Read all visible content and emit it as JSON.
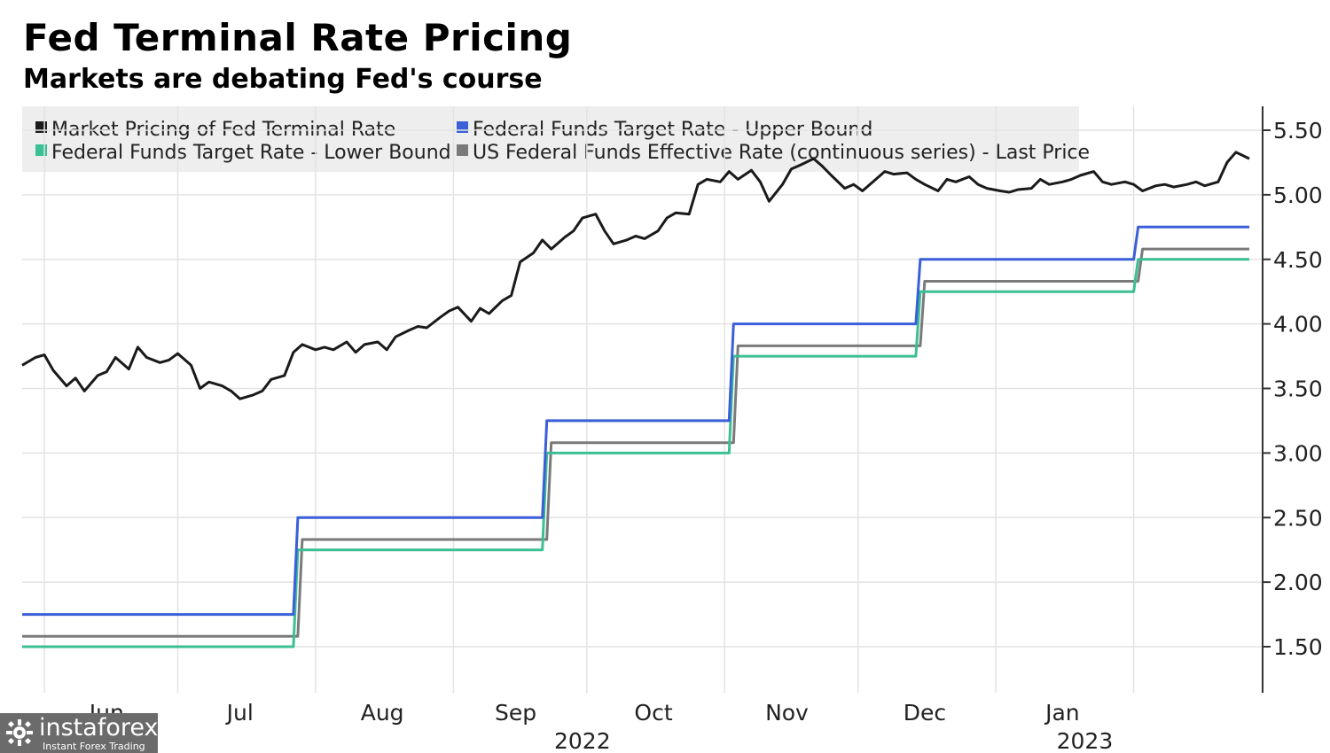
{
  "header": {
    "title": "Fed Terminal Rate Pricing",
    "subtitle": "Markets are debating Fed's course"
  },
  "watermark": {
    "name": "instaforex",
    "tagline": "Instant Forex Trading",
    "icon": "instaforex-logo-icon"
  },
  "chart_data": {
    "type": "line",
    "title": "Fed Terminal Rate Pricing",
    "subtitle": "Markets are debating Fed's course",
    "ylim": [
      1.5,
      5.5
    ],
    "yticks": [
      "1.50",
      "2.00",
      "2.50",
      "3.00",
      "3.50",
      "4.00",
      "4.50",
      "5.00",
      "5.50"
    ],
    "y_axis_side": "right",
    "grid": true,
    "legend_placement": "top-left",
    "x_month_labels": [
      "Jun",
      "Jul",
      "Aug",
      "Sep",
      "Oct",
      "Nov",
      "Dec",
      "Jan"
    ],
    "x_year_labels": [
      "2022",
      "2023"
    ],
    "series": [
      {
        "name": "Market Pricing of Fed Terminal Rate",
        "color": "#1a1a1a",
        "points": [
          [
            "2022-05-27",
            3.68
          ],
          [
            "2022-05-30",
            3.74
          ],
          [
            "2022-06-01",
            3.76
          ],
          [
            "2022-06-03",
            3.64
          ],
          [
            "2022-06-06",
            3.52
          ],
          [
            "2022-06-08",
            3.58
          ],
          [
            "2022-06-10",
            3.48
          ],
          [
            "2022-06-13",
            3.6
          ],
          [
            "2022-06-15",
            3.63
          ],
          [
            "2022-06-17",
            3.74
          ],
          [
            "2022-06-20",
            3.65
          ],
          [
            "2022-06-22",
            3.82
          ],
          [
            "2022-06-24",
            3.74
          ],
          [
            "2022-06-27",
            3.7
          ],
          [
            "2022-06-29",
            3.72
          ],
          [
            "2022-07-01",
            3.77
          ],
          [
            "2022-07-04",
            3.68
          ],
          [
            "2022-07-06",
            3.5
          ],
          [
            "2022-07-08",
            3.55
          ],
          [
            "2022-07-11",
            3.52
          ],
          [
            "2022-07-13",
            3.48
          ],
          [
            "2022-07-15",
            3.42
          ],
          [
            "2022-07-18",
            3.45
          ],
          [
            "2022-07-20",
            3.48
          ],
          [
            "2022-07-22",
            3.57
          ],
          [
            "2022-07-25",
            3.6
          ],
          [
            "2022-07-27",
            3.78
          ],
          [
            "2022-07-29",
            3.84
          ],
          [
            "2022-08-01",
            3.8
          ],
          [
            "2022-08-03",
            3.82
          ],
          [
            "2022-08-05",
            3.8
          ],
          [
            "2022-08-08",
            3.86
          ],
          [
            "2022-08-10",
            3.78
          ],
          [
            "2022-08-12",
            3.84
          ],
          [
            "2022-08-15",
            3.86
          ],
          [
            "2022-08-17",
            3.8
          ],
          [
            "2022-08-19",
            3.9
          ],
          [
            "2022-08-22",
            3.95
          ],
          [
            "2022-08-24",
            3.98
          ],
          [
            "2022-08-26",
            3.97
          ],
          [
            "2022-08-29",
            4.05
          ],
          [
            "2022-08-31",
            4.1
          ],
          [
            "2022-09-02",
            4.13
          ],
          [
            "2022-09-05",
            4.02
          ],
          [
            "2022-09-07",
            4.12
          ],
          [
            "2022-09-09",
            4.08
          ],
          [
            "2022-09-12",
            4.18
          ],
          [
            "2022-09-14",
            4.22
          ],
          [
            "2022-09-16",
            4.48
          ],
          [
            "2022-09-19",
            4.55
          ],
          [
            "2022-09-21",
            4.65
          ],
          [
            "2022-09-23",
            4.58
          ],
          [
            "2022-09-26",
            4.67
          ],
          [
            "2022-09-28",
            4.72
          ],
          [
            "2022-09-30",
            4.82
          ],
          [
            "2022-10-03",
            4.85
          ],
          [
            "2022-10-05",
            4.72
          ],
          [
            "2022-10-07",
            4.62
          ],
          [
            "2022-10-10",
            4.65
          ],
          [
            "2022-10-12",
            4.68
          ],
          [
            "2022-10-14",
            4.66
          ],
          [
            "2022-10-17",
            4.72
          ],
          [
            "2022-10-19",
            4.82
          ],
          [
            "2022-10-21",
            4.86
          ],
          [
            "2022-10-24",
            4.85
          ],
          [
            "2022-10-26",
            5.08
          ],
          [
            "2022-10-28",
            5.12
          ],
          [
            "2022-10-31",
            5.1
          ],
          [
            "2022-11-02",
            5.18
          ],
          [
            "2022-11-04",
            5.12
          ],
          [
            "2022-11-07",
            5.19
          ],
          [
            "2022-11-09",
            5.1
          ],
          [
            "2022-11-11",
            4.95
          ],
          [
            "2022-11-14",
            5.08
          ],
          [
            "2022-11-16",
            5.2
          ],
          [
            "2022-11-18",
            5.23
          ],
          [
            "2022-11-21",
            5.28
          ],
          [
            "2022-11-23",
            5.22
          ],
          [
            "2022-11-25",
            5.15
          ],
          [
            "2022-11-28",
            5.05
          ],
          [
            "2022-11-30",
            5.08
          ],
          [
            "2022-12-02",
            5.03
          ],
          [
            "2022-12-05",
            5.12
          ],
          [
            "2022-12-07",
            5.18
          ],
          [
            "2022-12-09",
            5.16
          ],
          [
            "2022-12-12",
            5.17
          ],
          [
            "2022-12-14",
            5.12
          ],
          [
            "2022-12-16",
            5.08
          ],
          [
            "2022-12-19",
            5.03
          ],
          [
            "2022-12-21",
            5.12
          ],
          [
            "2022-12-23",
            5.1
          ],
          [
            "2022-12-26",
            5.14
          ],
          [
            "2022-12-28",
            5.08
          ],
          [
            "2022-12-30",
            5.05
          ],
          [
            "2023-01-02",
            5.03
          ],
          [
            "2023-01-04",
            5.02
          ],
          [
            "2023-01-06",
            5.04
          ],
          [
            "2023-01-09",
            5.05
          ],
          [
            "2023-01-11",
            5.12
          ],
          [
            "2023-01-13",
            5.08
          ],
          [
            "2023-01-16",
            5.1
          ],
          [
            "2023-01-18",
            5.12
          ],
          [
            "2023-01-20",
            5.15
          ],
          [
            "2023-01-23",
            5.18
          ],
          [
            "2023-01-25",
            5.1
          ],
          [
            "2023-01-27",
            5.08
          ],
          [
            "2023-01-30",
            5.1
          ],
          [
            "2023-02-01",
            5.08
          ],
          [
            "2023-02-03",
            5.03
          ],
          [
            "2023-02-06",
            5.07
          ],
          [
            "2023-02-08",
            5.08
          ],
          [
            "2023-02-10",
            5.06
          ],
          [
            "2023-02-13",
            5.08
          ],
          [
            "2023-02-15",
            5.1
          ],
          [
            "2023-02-17",
            5.07
          ],
          [
            "2023-02-20",
            5.1
          ],
          [
            "2023-02-22",
            5.25
          ],
          [
            "2023-02-24",
            5.33
          ],
          [
            "2023-02-27",
            5.28
          ]
        ]
      },
      {
        "name": "Federal Funds Target Rate - Upper Bound",
        "color": "#3a5fd8",
        "points": [
          [
            "2022-05-27",
            1.75
          ],
          [
            "2022-07-27",
            1.75
          ],
          [
            "2022-07-28",
            2.5
          ],
          [
            "2022-09-21",
            2.5
          ],
          [
            "2022-09-22",
            3.25
          ],
          [
            "2022-11-02",
            3.25
          ],
          [
            "2022-11-03",
            4.0
          ],
          [
            "2022-12-14",
            4.0
          ],
          [
            "2022-12-15",
            4.5
          ],
          [
            "2023-02-01",
            4.5
          ],
          [
            "2023-02-02",
            4.75
          ],
          [
            "2023-02-27",
            4.75
          ]
        ]
      },
      {
        "name": "Federal Funds Target Rate - Lower Bound",
        "color": "#3bbf94",
        "points": [
          [
            "2022-05-27",
            1.5
          ],
          [
            "2022-07-27",
            1.5
          ],
          [
            "2022-07-28",
            2.25
          ],
          [
            "2022-09-21",
            2.25
          ],
          [
            "2022-09-22",
            3.0
          ],
          [
            "2022-11-02",
            3.0
          ],
          [
            "2022-11-03",
            3.75
          ],
          [
            "2022-12-14",
            3.75
          ],
          [
            "2022-12-15",
            4.25
          ],
          [
            "2023-02-01",
            4.25
          ],
          [
            "2023-02-02",
            4.5
          ],
          [
            "2023-02-27",
            4.5
          ]
        ]
      },
      {
        "name": "US Federal Funds Effective Rate (continuous series) - Last Price",
        "color": "#7a7a7a",
        "points": [
          [
            "2022-05-27",
            1.58
          ],
          [
            "2022-07-28",
            1.58
          ],
          [
            "2022-07-29",
            2.33
          ],
          [
            "2022-09-22",
            2.33
          ],
          [
            "2022-09-23",
            3.08
          ],
          [
            "2022-11-03",
            3.08
          ],
          [
            "2022-11-04",
            3.83
          ],
          [
            "2022-12-15",
            3.83
          ],
          [
            "2022-12-16",
            4.33
          ],
          [
            "2023-02-02",
            4.33
          ],
          [
            "2023-02-03",
            4.58
          ],
          [
            "2023-02-27",
            4.58
          ]
        ]
      }
    ]
  }
}
